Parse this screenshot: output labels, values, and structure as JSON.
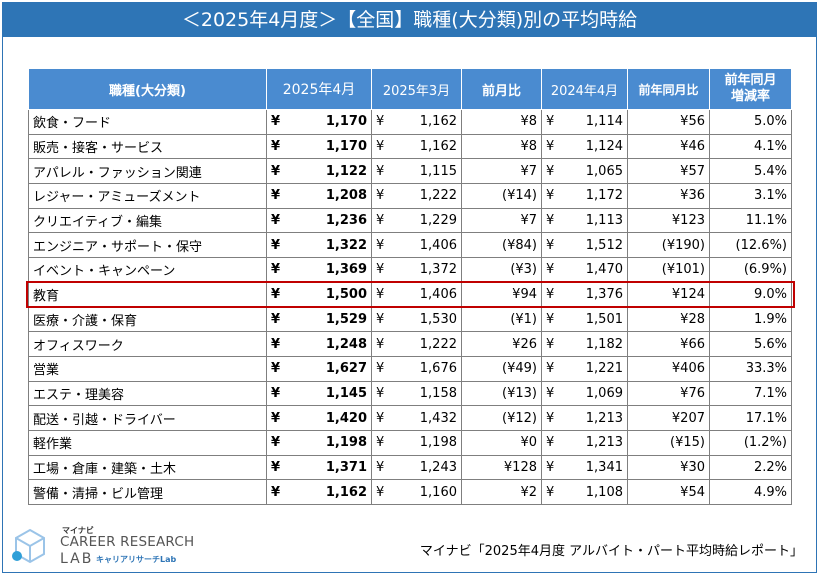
{
  "title": "＜2025年4月度＞【全国】職種(大分類)別の平均時給",
  "table": {
    "headers": {
      "category": "職種(大分類)",
      "apr2025": "2025年4月",
      "mar2025": "2025年3月",
      "mom": "前月比",
      "apr2024": "2024年4月",
      "yoy": "前年同月比",
      "yoy_rate_line1": "前年同月",
      "yoy_rate_line2": "増減率"
    },
    "yen_symbol": "¥",
    "rows": [
      {
        "name": "飲食・フード",
        "apr2025": "1,170",
        "mar2025": "1,162",
        "mom": "¥8",
        "apr2024": "1,114",
        "yoy": "¥56",
        "rate": "5.0%"
      },
      {
        "name": "販売・接客・サービス",
        "apr2025": "1,170",
        "mar2025": "1,162",
        "mom": "¥8",
        "apr2024": "1,124",
        "yoy": "¥46",
        "rate": "4.1%"
      },
      {
        "name": "アパレル・ファッション関連",
        "apr2025": "1,122",
        "mar2025": "1,115",
        "mom": "¥7",
        "apr2024": "1,065",
        "yoy": "¥57",
        "rate": "5.4%"
      },
      {
        "name": "レジャー・アミューズメント",
        "apr2025": "1,208",
        "mar2025": "1,222",
        "mom": "(¥14)",
        "apr2024": "1,172",
        "yoy": "¥36",
        "rate": "3.1%"
      },
      {
        "name": "クリエイティブ・編集",
        "apr2025": "1,236",
        "mar2025": "1,229",
        "mom": "¥7",
        "apr2024": "1,113",
        "yoy": "¥123",
        "rate": "11.1%"
      },
      {
        "name": "エンジニア・サポート・保守",
        "apr2025": "1,322",
        "mar2025": "1,406",
        "mom": "(¥84)",
        "apr2024": "1,512",
        "yoy": "(¥190)",
        "rate": "(12.6%)"
      },
      {
        "name": "イベント・キャンペーン",
        "apr2025": "1,369",
        "mar2025": "1,372",
        "mom": "(¥3)",
        "apr2024": "1,470",
        "yoy": "(¥101)",
        "rate": "(6.9%)"
      },
      {
        "name": "教育",
        "apr2025": "1,500",
        "mar2025": "1,406",
        "mom": "¥94",
        "apr2024": "1,376",
        "yoy": "¥124",
        "rate": "9.0%"
      },
      {
        "name": "医療・介護・保育",
        "apr2025": "1,529",
        "mar2025": "1,530",
        "mom": "(¥1)",
        "apr2024": "1,501",
        "yoy": "¥28",
        "rate": "1.9%"
      },
      {
        "name": "オフィスワーク",
        "apr2025": "1,248",
        "mar2025": "1,222",
        "mom": "¥26",
        "apr2024": "1,182",
        "yoy": "¥66",
        "rate": "5.6%"
      },
      {
        "name": "営業",
        "apr2025": "1,627",
        "mar2025": "1,676",
        "mom": "(¥49)",
        "apr2024": "1,221",
        "yoy": "¥406",
        "rate": "33.3%"
      },
      {
        "name": "エステ・理美容",
        "apr2025": "1,145",
        "mar2025": "1,158",
        "mom": "(¥13)",
        "apr2024": "1,069",
        "yoy": "¥76",
        "rate": "7.1%"
      },
      {
        "name": "配送・引越・ドライバー",
        "apr2025": "1,420",
        "mar2025": "1,432",
        "mom": "(¥12)",
        "apr2024": "1,213",
        "yoy": "¥207",
        "rate": "17.1%"
      },
      {
        "name": "軽作業",
        "apr2025": "1,198",
        "mar2025": "1,198",
        "mom": "¥0",
        "apr2024": "1,213",
        "yoy": "(¥15)",
        "rate": "(1.2%)"
      },
      {
        "name": "工場・倉庫・建築・土木",
        "apr2025": "1,371",
        "mar2025": "1,243",
        "mom": "¥128",
        "apr2024": "1,341",
        "yoy": "¥30",
        "rate": "2.2%"
      },
      {
        "name": "警備・清掃・ビル管理",
        "apr2025": "1,162",
        "mar2025": "1,160",
        "mom": "¥2",
        "apr2024": "1,108",
        "yoy": "¥54",
        "rate": "4.9%"
      }
    ],
    "highlighted_row": "教育"
  },
  "logo": {
    "brand_small": "マイナビ",
    "brand_main": "CAREER RESEARCH",
    "brand_lab": "LAB",
    "brand_sub": "キャリアリサーチLab"
  },
  "source": "マイナビ「2025年4月度 アルバイト・パート平均時給レポート」",
  "colors": {
    "title_bg": "#2e75b6",
    "header_bg": "#4a8bd0",
    "negative": "#e00000",
    "highlight_border": "#c00000"
  }
}
